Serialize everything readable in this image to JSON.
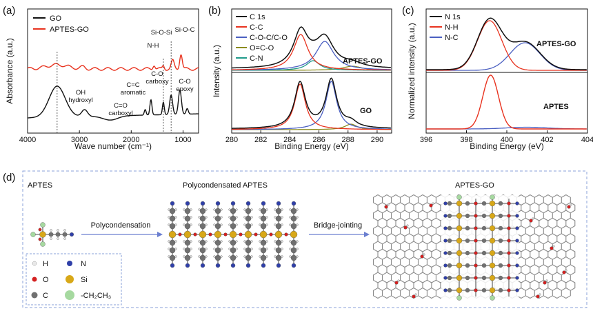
{
  "panel_labels": {
    "a": "(a)",
    "b": "(b)",
    "c": "(c)",
    "d": "(d)"
  },
  "colors": {
    "black": "#111111",
    "red": "#e8321e",
    "blue": "#4a5fc1",
    "olive": "#8c8c1e",
    "teal": "#1f9a8a",
    "frame": "#8aa0d8"
  },
  "chart_data": [
    {
      "type": "line",
      "xlabel": "Wave number (cm⁻¹)",
      "ylabel": "Absorbance (a.u.)",
      "xlim": [
        4000,
        700
      ],
      "xticks": [
        "4000",
        "3000",
        "2000",
        "1000"
      ],
      "series": [
        {
          "name": "GO"
        },
        {
          "name": "APTES-GO"
        }
      ],
      "annotations": [
        {
          "text": "OH",
          "x": 3430
        },
        {
          "text": "hydroxyl",
          "x": 3430
        },
        {
          "text": "C=O",
          "x": 1730
        },
        {
          "text": "carboxyl",
          "x": 1730
        },
        {
          "text": "C=C",
          "x": 1620
        },
        {
          "text": "aromatic",
          "x": 1620
        },
        {
          "text": "N-H",
          "x": 1560
        },
        {
          "text": "C-O",
          "x": 1380
        },
        {
          "text": "carboxy",
          "x": 1380
        },
        {
          "text": "Si-O-Si",
          "x": 1200
        },
        {
          "text": "Si-O-C",
          "x": 1040
        },
        {
          "text": "C-O",
          "x": 1050
        },
        {
          "text": "epoxy",
          "x": 1050
        }
      ]
    },
    {
      "type": "line",
      "xlabel": "Binding Energy (eV)",
      "ylabel": "Intensity (a.u.)",
      "xlim": [
        280,
        291
      ],
      "xticks": [
        "280",
        "282",
        "284",
        "286",
        "288",
        "290"
      ],
      "series": [
        {
          "name": "C 1s"
        },
        {
          "name": "C-C"
        },
        {
          "name": "C-O-C/C-O"
        },
        {
          "name": "O=C-O"
        },
        {
          "name": "C-N"
        }
      ],
      "sample_labels": [
        "APTES-GO",
        "GO"
      ],
      "peaks_eV": {
        "C-C": 284.7,
        "C-O-C/C-O": 286.8,
        "O=C-O": 288.2,
        "C-N": 285.6
      }
    },
    {
      "type": "line",
      "xlabel": "Binding Energy (eV)",
      "ylabel": "Normalized intensity (a.u.)",
      "xlim": [
        396,
        404
      ],
      "xticks": [
        "396",
        "398",
        "400",
        "402",
        "404"
      ],
      "series": [
        {
          "name": "N 1s"
        },
        {
          "name": "N-H"
        },
        {
          "name": "N-C"
        }
      ],
      "sample_labels": [
        "APTES-GO",
        "APTES"
      ],
      "peaks_eV": {
        "N-H": 399.2,
        "N-C": 400.9
      }
    }
  ],
  "schematic": {
    "stage1": "APTES",
    "stage2": "Polycondensated APTES",
    "stage3": "APTES-GO",
    "arrow1": "Polycondensation",
    "arrow2": "Bridge-jointing",
    "legend": [
      {
        "symbol": "H",
        "label": "H",
        "color": "#e8e8e8"
      },
      {
        "symbol": "N",
        "label": "N",
        "color": "#2f3fa8"
      },
      {
        "symbol": "O",
        "label": "O",
        "color": "#d42020"
      },
      {
        "symbol": "Si",
        "label": "Si",
        "color": "#d8a818"
      },
      {
        "symbol": "C",
        "label": "C",
        "color": "#707070"
      },
      {
        "symbol": "R",
        "label": "-CH₂CH₃",
        "color": "#a6d9a0"
      }
    ]
  }
}
